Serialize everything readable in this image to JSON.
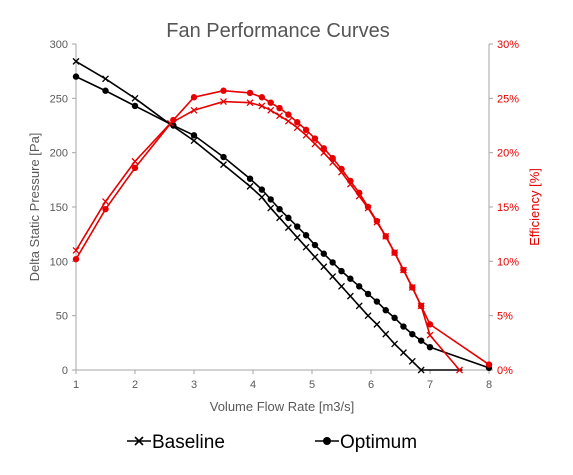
{
  "chart_data": {
    "type": "line",
    "title": "Fan Performance Curves",
    "xlabel": "Volume Flow Rate [m3/s]",
    "ylabel": "Delta Static Pressure [Pa]",
    "y2label": "Efficiency [%]",
    "xlim": [
      1,
      8
    ],
    "ylim": [
      0,
      300
    ],
    "y2lim": [
      0,
      30
    ],
    "x_ticks": [
      "1",
      "2",
      "3",
      "4",
      "5",
      "6",
      "7",
      "8"
    ],
    "y_ticks": [
      "0",
      "50",
      "100",
      "150",
      "200",
      "250",
      "300"
    ],
    "y2_ticks": [
      "0%",
      "5%",
      "10%",
      "15%",
      "20%",
      "25%",
      "30%"
    ],
    "grid": false,
    "legend_position": "bottom",
    "colors": {
      "pressure": "#000000",
      "efficiency": "#e60000",
      "axis": "#888888",
      "title": "#555555"
    },
    "series": [
      {
        "name": "Baseline",
        "legend_label": "Baseline",
        "marker": "x",
        "axis": "left",
        "x": [
          1,
          1.5,
          2,
          2.6,
          3,
          3.5,
          3.95,
          4.15,
          4.3,
          4.45,
          4.6,
          4.75,
          4.9,
          5.05,
          5.2,
          5.35,
          5.5,
          5.65,
          5.8,
          5.95,
          6.1,
          6.25,
          6.4,
          6.55,
          6.7,
          6.85,
          7
        ],
        "values": [
          284,
          268,
          250,
          226,
          211,
          189,
          169,
          159,
          149,
          140,
          131,
          122,
          113,
          104,
          95,
          86,
          77,
          68,
          59,
          50,
          42,
          33,
          24,
          16,
          8,
          0,
          0
        ],
        "x_line_end": 7.55,
        "marker_count": 26
      },
      {
        "name": "Optimum",
        "legend_label": "Optimum",
        "marker": "dot",
        "axis": "left",
        "x": [
          1,
          1.5,
          2,
          2.65,
          3,
          3.5,
          3.95,
          4.15,
          4.3,
          4.45,
          4.6,
          4.75,
          4.9,
          5.05,
          5.2,
          5.35,
          5.5,
          5.65,
          5.8,
          5.95,
          6.1,
          6.25,
          6.4,
          6.55,
          6.7,
          6.85,
          7,
          8
        ],
        "values": [
          270,
          257,
          243,
          225,
          216,
          196,
          176,
          166,
          157,
          148,
          140,
          132,
          124,
          115,
          107,
          99,
          91,
          84,
          77,
          70,
          63,
          55,
          48,
          40,
          33,
          27,
          21,
          2
        ]
      },
      {
        "name": "Baseline",
        "marker": "x",
        "axis": "right",
        "x": [
          1,
          1.5,
          2,
          2.6,
          3,
          3.5,
          3.95,
          4.15,
          4.3,
          4.45,
          4.6,
          4.75,
          4.9,
          5.05,
          5.2,
          5.35,
          5.5,
          5.65,
          5.8,
          5.95,
          6.1,
          6.25,
          6.4,
          6.55,
          6.7,
          6.85,
          7,
          7.5
        ],
        "values": [
          11.0,
          15.5,
          19.2,
          22.7,
          23.9,
          24.7,
          24.6,
          24.3,
          23.9,
          23.4,
          22.9,
          22.3,
          21.6,
          20.8,
          20.0,
          19.1,
          18.2,
          17.1,
          16.0,
          14.9,
          13.6,
          12.3,
          10.8,
          9.2,
          7.6,
          5.9,
          3.2,
          0
        ]
      },
      {
        "name": "Optimum",
        "marker": "dot",
        "axis": "right",
        "x": [
          1,
          1.5,
          2,
          2.65,
          3,
          3.5,
          3.95,
          4.15,
          4.3,
          4.45,
          4.6,
          4.75,
          4.9,
          5.05,
          5.2,
          5.35,
          5.5,
          5.65,
          5.8,
          5.95,
          6.1,
          6.25,
          6.4,
          6.55,
          6.7,
          6.85,
          7,
          8
        ],
        "values": [
          10.2,
          14.8,
          18.6,
          23.0,
          25.1,
          25.7,
          25.5,
          25.1,
          24.6,
          24.1,
          23.5,
          22.8,
          22.1,
          21.3,
          20.4,
          19.5,
          18.5,
          17.4,
          16.3,
          15.0,
          13.7,
          12.3,
          10.8,
          9.2,
          7.6,
          5.9,
          4.2,
          0.5
        ]
      }
    ]
  }
}
